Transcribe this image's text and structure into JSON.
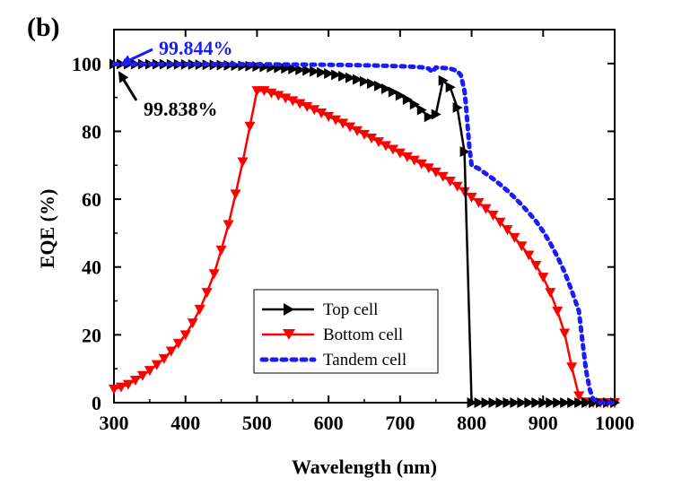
{
  "panel_label": "(b)",
  "chart_data": {
    "type": "line",
    "xlabel": "Wavelength (nm)",
    "ylabel": "EQE (%)",
    "xlim": [
      300,
      1000
    ],
    "ylim": [
      0,
      110
    ],
    "xticks": [
      300,
      400,
      500,
      600,
      700,
      800,
      900,
      1000
    ],
    "yticks": [
      0,
      20,
      40,
      60,
      80,
      100
    ],
    "legend_position": "lower-center",
    "grid": false,
    "annotations": [
      {
        "text": "99.844%",
        "color": "#1a1aff",
        "points_to": {
          "x": 300,
          "y": 99.844
        }
      },
      {
        "text": "99.838%",
        "color": "#000000",
        "points_to": {
          "x": 305,
          "y": 99.838
        }
      }
    ],
    "series": [
      {
        "name": "Top cell",
        "color": "#000000",
        "marker": "triangle-right",
        "points": [
          [
            300,
            99.84
          ],
          [
            310,
            99.84
          ],
          [
            320,
            99.83
          ],
          [
            330,
            99.82
          ],
          [
            340,
            99.81
          ],
          [
            350,
            99.8
          ],
          [
            360,
            99.79
          ],
          [
            370,
            99.78
          ],
          [
            380,
            99.76
          ],
          [
            390,
            99.74
          ],
          [
            400,
            99.72
          ],
          [
            410,
            99.69
          ],
          [
            420,
            99.66
          ],
          [
            430,
            99.62
          ],
          [
            440,
            99.58
          ],
          [
            450,
            99.53
          ],
          [
            460,
            99.47
          ],
          [
            470,
            99.4
          ],
          [
            480,
            99.32
          ],
          [
            490,
            99.23
          ],
          [
            500,
            99.12
          ],
          [
            510,
            99.0
          ],
          [
            520,
            98.87
          ],
          [
            530,
            98.72
          ],
          [
            540,
            98.55
          ],
          [
            550,
            98.36
          ],
          [
            560,
            98.15
          ],
          [
            570,
            97.92
          ],
          [
            580,
            97.66
          ],
          [
            590,
            97.37
          ],
          [
            600,
            97.04
          ],
          [
            610,
            96.67
          ],
          [
            620,
            96.26
          ],
          [
            630,
            95.8
          ],
          [
            640,
            95.29
          ],
          [
            650,
            94.72
          ],
          [
            660,
            94.08
          ],
          [
            670,
            93.36
          ],
          [
            680,
            92.55
          ],
          [
            690,
            91.63
          ],
          [
            700,
            90.58
          ],
          [
            710,
            89.37
          ],
          [
            720,
            87.95
          ],
          [
            730,
            86.29
          ],
          [
            740,
            84.3
          ],
          [
            750,
            85.0
          ],
          [
            760,
            95.0
          ],
          [
            770,
            93.0
          ],
          [
            780,
            87.0
          ],
          [
            790,
            74.0
          ],
          [
            800,
            0.0
          ],
          [
            810,
            0
          ],
          [
            820,
            0
          ],
          [
            830,
            0
          ],
          [
            840,
            0
          ],
          [
            850,
            0
          ],
          [
            860,
            0
          ],
          [
            870,
            0
          ],
          [
            880,
            0
          ],
          [
            890,
            0
          ],
          [
            900,
            0
          ],
          [
            910,
            0
          ],
          [
            920,
            0
          ],
          [
            930,
            0
          ],
          [
            940,
            0
          ],
          [
            950,
            0
          ],
          [
            960,
            0
          ],
          [
            970,
            0
          ],
          [
            980,
            0
          ],
          [
            990,
            0
          ],
          [
            1000,
            0
          ]
        ]
      },
      {
        "name": "Bottom cell",
        "color": "#ff0000",
        "marker": "triangle-down",
        "points": [
          [
            300,
            4.0
          ],
          [
            310,
            4.6
          ],
          [
            320,
            5.4
          ],
          [
            330,
            6.6
          ],
          [
            340,
            8.0
          ],
          [
            350,
            9.5
          ],
          [
            360,
            11.2
          ],
          [
            370,
            13.0
          ],
          [
            380,
            15.2
          ],
          [
            390,
            17.5
          ],
          [
            400,
            20.0
          ],
          [
            410,
            23.5
          ],
          [
            420,
            27.5
          ],
          [
            430,
            32.5
          ],
          [
            440,
            38.0
          ],
          [
            450,
            45.0
          ],
          [
            460,
            52.5
          ],
          [
            470,
            61.5
          ],
          [
            480,
            71.0
          ],
          [
            490,
            81.5
          ],
          [
            500,
            92.0
          ],
          [
            510,
            92.0
          ],
          [
            520,
            91.3
          ],
          [
            530,
            90.6
          ],
          [
            540,
            89.8
          ],
          [
            550,
            89.0
          ],
          [
            560,
            88.2
          ],
          [
            570,
            87.3
          ],
          [
            580,
            86.4
          ],
          [
            590,
            85.4
          ],
          [
            600,
            84.4
          ],
          [
            610,
            83.4
          ],
          [
            620,
            82.4
          ],
          [
            630,
            81.3
          ],
          [
            640,
            80.2
          ],
          [
            650,
            79.1
          ],
          [
            660,
            78.0
          ],
          [
            670,
            76.9
          ],
          [
            680,
            75.8
          ],
          [
            690,
            74.7
          ],
          [
            700,
            73.6
          ],
          [
            710,
            72.5
          ],
          [
            720,
            71.5
          ],
          [
            730,
            70.4
          ],
          [
            740,
            69.2
          ],
          [
            750,
            68.0
          ],
          [
            760,
            66.7
          ],
          [
            770,
            65.3
          ],
          [
            780,
            63.8
          ],
          [
            790,
            62.2
          ],
          [
            800,
            60.6
          ],
          [
            810,
            59.0
          ],
          [
            820,
            57.2
          ],
          [
            830,
            55.3
          ],
          [
            840,
            53.2
          ],
          [
            850,
            51.0
          ],
          [
            860,
            48.7
          ],
          [
            870,
            46.2
          ],
          [
            880,
            43.5
          ],
          [
            890,
            40.5
          ],
          [
            900,
            37.0
          ],
          [
            910,
            32.5
          ],
          [
            920,
            27.0
          ],
          [
            930,
            20.5
          ],
          [
            940,
            10.5
          ],
          [
            950,
            2.0
          ],
          [
            960,
            0.2
          ],
          [
            970,
            0
          ],
          [
            980,
            0
          ],
          [
            990,
            0
          ],
          [
            1000,
            0
          ]
        ]
      },
      {
        "name": "Tandem cell",
        "color": "#1a1aff",
        "marker": "dot",
        "points": [
          [
            300,
            99.844
          ],
          [
            320,
            99.84
          ],
          [
            340,
            99.84
          ],
          [
            360,
            99.83
          ],
          [
            380,
            99.83
          ],
          [
            400,
            99.82
          ],
          [
            420,
            99.81
          ],
          [
            440,
            99.8
          ],
          [
            460,
            99.79
          ],
          [
            480,
            99.78
          ],
          [
            500,
            99.76
          ],
          [
            520,
            99.74
          ],
          [
            540,
            99.72
          ],
          [
            560,
            99.69
          ],
          [
            580,
            99.66
          ],
          [
            600,
            99.62
          ],
          [
            620,
            99.57
          ],
          [
            640,
            99.51
          ],
          [
            660,
            99.43
          ],
          [
            680,
            99.33
          ],
          [
            700,
            99.2
          ],
          [
            710,
            99.12
          ],
          [
            720,
            99.02
          ],
          [
            730,
            98.9
          ],
          [
            740,
            98.5
          ],
          [
            745,
            97.5
          ],
          [
            750,
            98.8
          ],
          [
            760,
            98.7
          ],
          [
            770,
            98.5
          ],
          [
            780,
            97.8
          ],
          [
            785,
            96.5
          ],
          [
            790,
            92.0
          ],
          [
            792,
            88.0
          ],
          [
            795,
            80.0
          ],
          [
            797,
            75.0
          ],
          [
            800,
            70.0
          ],
          [
            810,
            69.0
          ],
          [
            820,
            67.5
          ],
          [
            830,
            66.0
          ],
          [
            840,
            64.3
          ],
          [
            850,
            62.5
          ],
          [
            860,
            60.5
          ],
          [
            870,
            58.3
          ],
          [
            880,
            56.0
          ],
          [
            890,
            53.5
          ],
          [
            900,
            50.5
          ],
          [
            910,
            47.0
          ],
          [
            920,
            43.0
          ],
          [
            930,
            38.5
          ],
          [
            940,
            33.0
          ],
          [
            950,
            27.0
          ],
          [
            955,
            18.0
          ],
          [
            960,
            9.5
          ],
          [
            965,
            4.0
          ],
          [
            970,
            1.0
          ],
          [
            980,
            0
          ],
          [
            990,
            0
          ],
          [
            1000,
            0
          ]
        ]
      }
    ]
  }
}
